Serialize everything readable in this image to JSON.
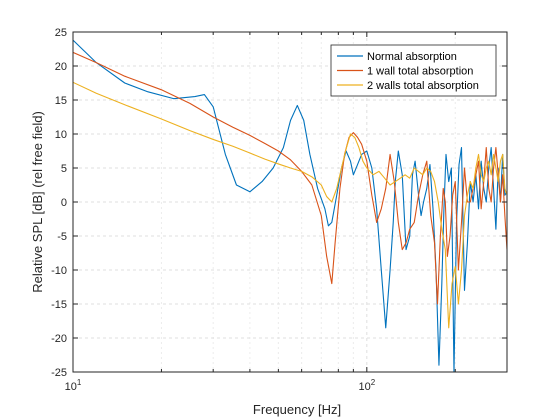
{
  "chart_data": {
    "type": "line",
    "title": "",
    "xlabel": "Frequency [Hz]",
    "ylabel": "Relative SPL [dB] (rel free field)",
    "xscale": "log",
    "xlim": [
      10,
      300
    ],
    "ylim": [
      -25,
      25
    ],
    "xtick_labels": [
      {
        "value": 10,
        "base": "10",
        "exp": "1"
      },
      {
        "value": 100,
        "base": "10",
        "exp": "2"
      }
    ],
    "yticks": [
      25,
      20,
      15,
      10,
      5,
      0,
      -5,
      -10,
      -15,
      -20,
      -25
    ],
    "grid": true,
    "legend_position": "top-right",
    "series": [
      {
        "name": "Normal absorption",
        "color": "#0072BD",
        "x": [
          10,
          12,
          15,
          18,
          22,
          26,
          28,
          30,
          33,
          36,
          40,
          44,
          48,
          52,
          55,
          58,
          61,
          64,
          68,
          72,
          74,
          76,
          79,
          82,
          85,
          88,
          90,
          93,
          96,
          100,
          104,
          108,
          112,
          116,
          120,
          123,
          125,
          128,
          132,
          136,
          140,
          143,
          146,
          150,
          153,
          156,
          160,
          164,
          168,
          172,
          176,
          180,
          183,
          186,
          190,
          194,
          198,
          202,
          206,
          210,
          215,
          220,
          225,
          230,
          235,
          240,
          245,
          250,
          255,
          260,
          265,
          270,
          275,
          280,
          285,
          290,
          295,
          300
        ],
        "y": [
          23.8,
          20.5,
          17.5,
          16.2,
          15.2,
          15.5,
          15.8,
          14,
          7,
          2.5,
          1.5,
          3,
          5,
          8,
          12,
          14.2,
          12,
          7,
          2,
          -1,
          -3.5,
          -3,
          1,
          5,
          7.5,
          6,
          4,
          5.5,
          7,
          7.5,
          5,
          -1,
          -10,
          -18.5,
          -10,
          -3,
          3,
          7.5,
          4,
          -7,
          -5,
          4,
          6,
          1,
          -2,
          0,
          2,
          5.5,
          -1,
          -10,
          -24,
          -12,
          -1,
          7,
          3,
          5,
          -25,
          -3,
          5.5,
          8,
          -13,
          -6,
          3,
          0,
          4,
          -1,
          6,
          2,
          0,
          5,
          8,
          2,
          -4,
          5,
          0,
          7,
          1,
          1.5
        ]
      },
      {
        "name": "1 wall total absorption",
        "color": "#D95319",
        "x": [
          10,
          12,
          15,
          20,
          25,
          30,
          35,
          40,
          45,
          50,
          55,
          60,
          65,
          70,
          73,
          76,
          78,
          81,
          84,
          87,
          90,
          93,
          96,
          100,
          104,
          108,
          112,
          116,
          120,
          124,
          128,
          132,
          136,
          140,
          145,
          150,
          155,
          160,
          165,
          170,
          174,
          178,
          182,
          185,
          188,
          192,
          196,
          200,
          205,
          210,
          215,
          220,
          225,
          230,
          235,
          240,
          245,
          250,
          255,
          260,
          265,
          270,
          275,
          280,
          285,
          290,
          295,
          300
        ],
        "y": [
          22,
          20.5,
          18.5,
          16.5,
          14.5,
          12.5,
          11,
          9.8,
          8.6,
          7.5,
          6.2,
          4.5,
          2.5,
          -2,
          -8,
          -12,
          -6,
          2,
          7,
          9.5,
          10.2,
          9.5,
          8.5,
          6,
          1,
          -3,
          -1,
          2,
          7,
          3,
          -3,
          -7,
          -6,
          -4,
          -3,
          1,
          4,
          6,
          -2,
          -6,
          -15,
          -5,
          2,
          0,
          -8,
          -5,
          1,
          3,
          -10,
          -3,
          5,
          0,
          0,
          2,
          4,
          6,
          -1,
          3,
          8,
          2,
          0,
          5,
          8,
          4,
          0,
          4,
          -2,
          -7
        ]
      },
      {
        "name": "2 walls total absorption",
        "color": "#EDB120",
        "x": [
          10,
          12,
          15,
          20,
          25,
          30,
          35,
          40,
          45,
          50,
          55,
          60,
          65,
          70,
          73,
          76,
          79,
          82,
          85,
          88,
          91,
          94,
          97,
          100,
          105,
          110,
          115,
          120,
          125,
          130,
          135,
          140,
          145,
          150,
          155,
          160,
          165,
          170,
          175,
          180,
          185,
          190,
          195,
          200,
          205,
          210,
          215,
          220,
          225,
          230,
          235,
          240,
          245,
          250,
          255,
          260,
          265,
          270,
          275,
          280,
          285,
          290,
          295,
          300
        ],
        "y": [
          17.6,
          16,
          14.3,
          12.2,
          10.5,
          9.2,
          8.2,
          7.2,
          6.3,
          5.6,
          5,
          4.5,
          3.7,
          2.5,
          0.8,
          0,
          2,
          5,
          7.8,
          10,
          9.5,
          8,
          6,
          5,
          4,
          4.5,
          3.5,
          2.5,
          3,
          3.5,
          4,
          3.5,
          5,
          4.5,
          4,
          5,
          4.5,
          3,
          0,
          -4,
          -7,
          -18.5,
          -12,
          -9.5,
          -15,
          -10,
          -2,
          1,
          3,
          2,
          5,
          7,
          4,
          3,
          5,
          6,
          4,
          7,
          5,
          3,
          6,
          7,
          2,
          1
        ]
      }
    ]
  }
}
